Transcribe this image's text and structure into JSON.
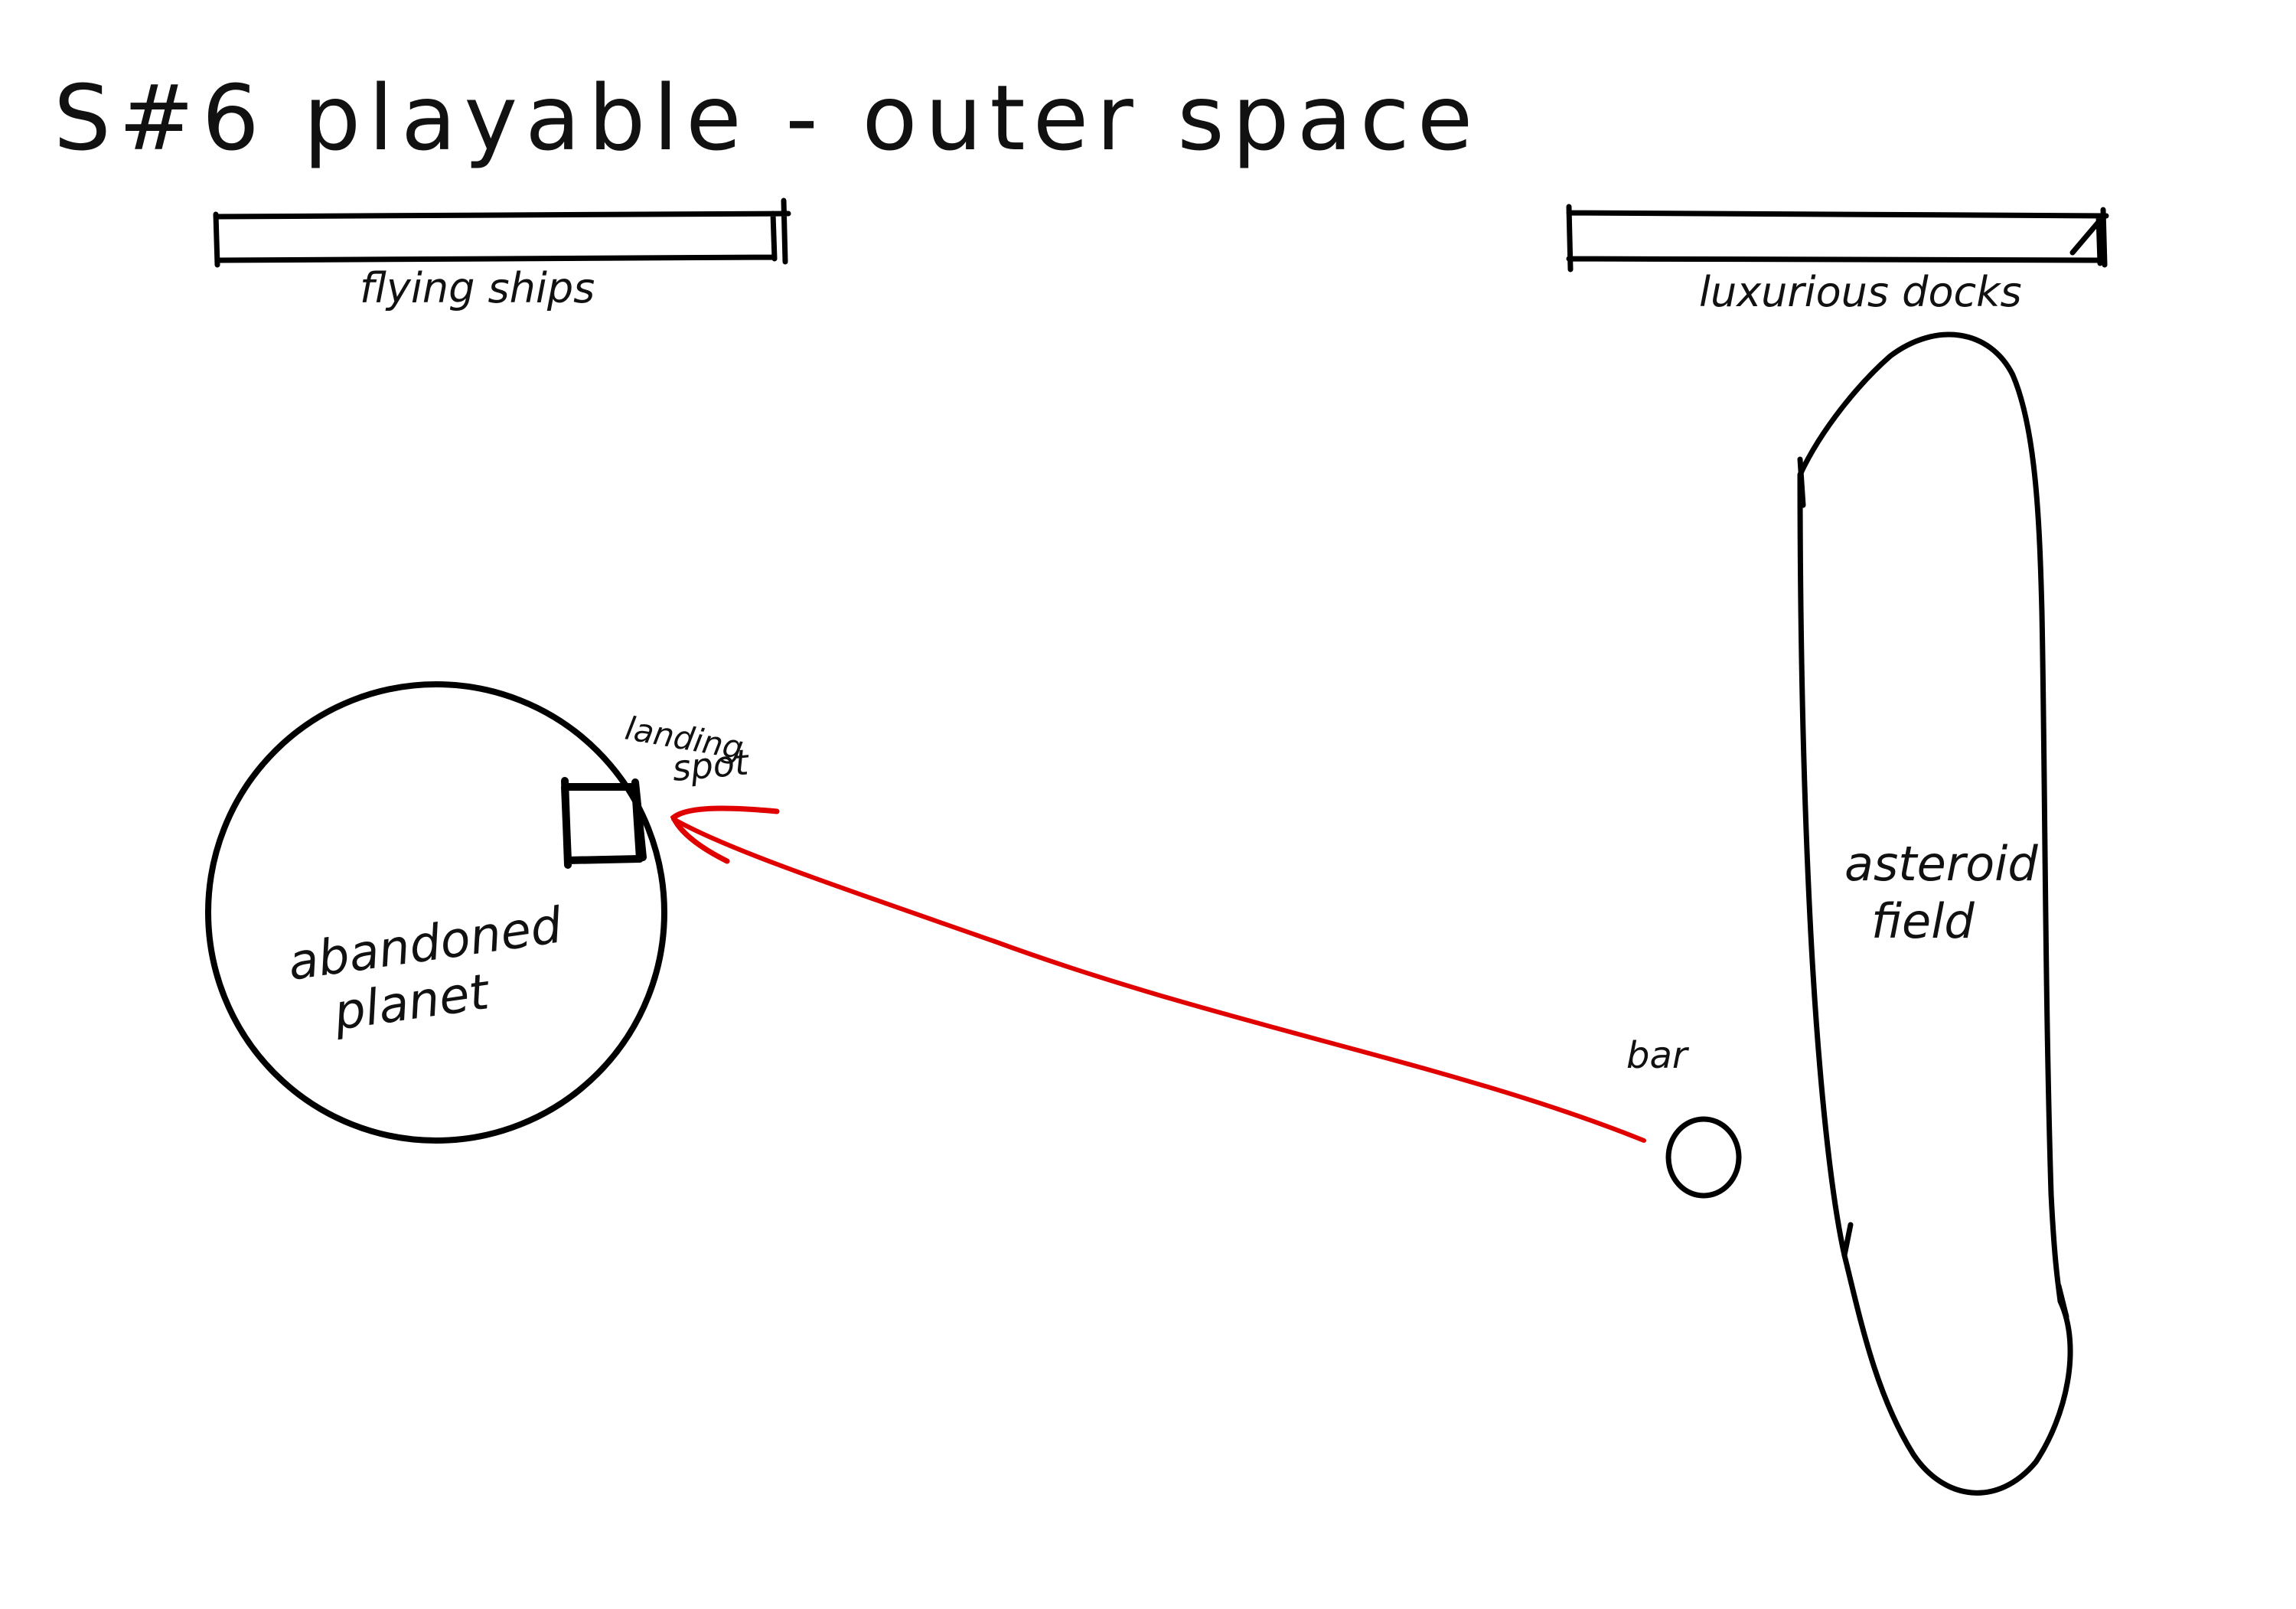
{
  "title": "S#6 playable - outer space",
  "labels": {
    "flying_ships": "flying ships",
    "luxurious_docks": "luxurious docks",
    "abandoned_planet_line1": "abandoned",
    "abandoned_planet_line2": "planet",
    "landing_spot_line1": "landing",
    "landing_spot_line2": "spot",
    "asteroid_field_line1": "asteroid",
    "asteroid_field_line2": "field",
    "bar": "bar"
  },
  "colors": {
    "ink": "#000000",
    "background": "#ffffff",
    "arrow": "#e00000"
  }
}
